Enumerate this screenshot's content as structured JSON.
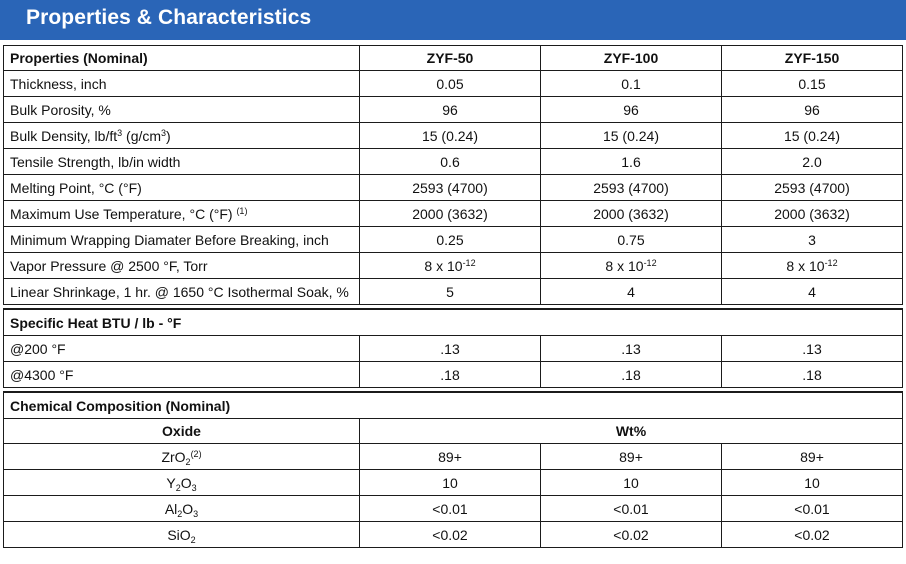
{
  "banner": {
    "title": "Properties & Characteristics"
  },
  "properties": {
    "header": {
      "label": "Properties (Nominal)",
      "cols": [
        "ZYF-50",
        "ZYF-100",
        "ZYF-150"
      ]
    },
    "rows": [
      {
        "label": "Thickness, inch",
        "values": [
          "0.05",
          "0.1",
          "0.15"
        ]
      },
      {
        "label": "Bulk Porosity, %",
        "values": [
          "96",
          "96",
          "96"
        ]
      },
      {
        "label_a": "Bulk Density, lb/ft",
        "label_sup": "3",
        "label_b": " (g/cm",
        "label_sup2": "3",
        "label_c": ")",
        "values": [
          "15 (0.24)",
          "15 (0.24)",
          "15 (0.24)"
        ]
      },
      {
        "label": "Tensile Strength, lb/in width",
        "values": [
          "0.6",
          "1.6",
          "2.0"
        ]
      },
      {
        "label": "Melting Point, °C (°F)",
        "values": [
          "2593 (4700)",
          "2593 (4700)",
          "2593 (4700)"
        ]
      },
      {
        "label": "Maximum Use Temperature, °C (°F)",
        "note": "(1)",
        "values": [
          "2000 (3632)",
          "2000 (3632)",
          "2000 (3632)"
        ]
      },
      {
        "label": "Minimum Wrapping Diamater Before Breaking, inch",
        "values": [
          "0.25",
          "0.75",
          "3"
        ]
      },
      {
        "label": "Vapor Pressure @ 2500 °F, Torr",
        "base": "8 x 10",
        "exp": "-12"
      },
      {
        "label": "Linear Shrinkage, 1 hr. @ 1650 °C Isothermal Soak, %",
        "values": [
          "5",
          "4",
          "4"
        ]
      }
    ]
  },
  "specific_heat": {
    "title": "Specific Heat BTU / lb - °F",
    "rows": [
      {
        "label": "@200 °F",
        "values": [
          ".13",
          ".13",
          ".13"
        ]
      },
      {
        "label": "@4300 °F",
        "values": [
          ".18",
          ".18",
          ".18"
        ]
      }
    ]
  },
  "chemical": {
    "title": "Chemical Composition (Nominal)",
    "oxide_header": "Oxide",
    "wt_header": "Wt%",
    "rows": [
      {
        "parts": [
          "ZrO",
          "2"
        ],
        "note": "(2)",
        "values": [
          "89+",
          "89+",
          "89+"
        ]
      },
      {
        "parts": [
          "Y",
          "2",
          "O",
          "3"
        ],
        "values": [
          "10",
          "10",
          "10"
        ]
      },
      {
        "parts": [
          "Al",
          "2",
          "O",
          "3"
        ],
        "values": [
          "<0.01",
          "<0.01",
          "<0.01"
        ]
      },
      {
        "parts": [
          "SiO",
          "2"
        ],
        "values": [
          "<0.02",
          "<0.02",
          "<0.02"
        ]
      }
    ]
  }
}
